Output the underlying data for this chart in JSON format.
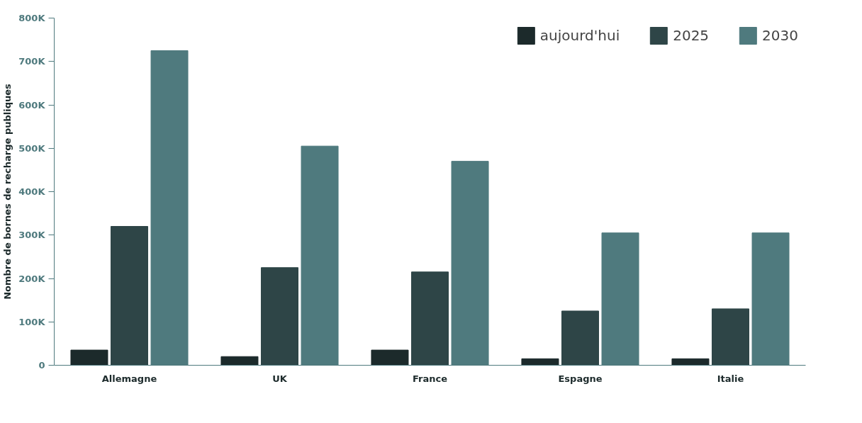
{
  "chart_data": {
    "type": "bar",
    "ylabel": "Nombre de bornes de recharge publiques",
    "categories": [
      "Allemagne",
      "UK",
      "France",
      "Espagne",
      "Italie"
    ],
    "series": [
      {
        "name": "aujourd'hui",
        "color": "#1c2a2b",
        "values": [
          35000,
          20000,
          35000,
          15000,
          15000
        ]
      },
      {
        "name": "2025",
        "color": "#2e4547",
        "values": [
          320000,
          225000,
          215000,
          125000,
          130000
        ]
      },
      {
        "name": "2030",
        "color": "#4f7a7e",
        "values": [
          725000,
          505000,
          470000,
          305000,
          305000
        ]
      }
    ],
    "ylim": [
      0,
      800000
    ],
    "yticks": [
      {
        "value": 0,
        "label": "0"
      },
      {
        "value": 100000,
        "label": "100K"
      },
      {
        "value": 200000,
        "label": "200K"
      },
      {
        "value": 300000,
        "label": "300K"
      },
      {
        "value": 400000,
        "label": "400K"
      },
      {
        "value": 500000,
        "label": "500K"
      },
      {
        "value": 600000,
        "label": "600K"
      },
      {
        "value": 700000,
        "label": "700K"
      },
      {
        "value": 800000,
        "label": "800K"
      }
    ],
    "grid": false,
    "legend": "top right"
  }
}
